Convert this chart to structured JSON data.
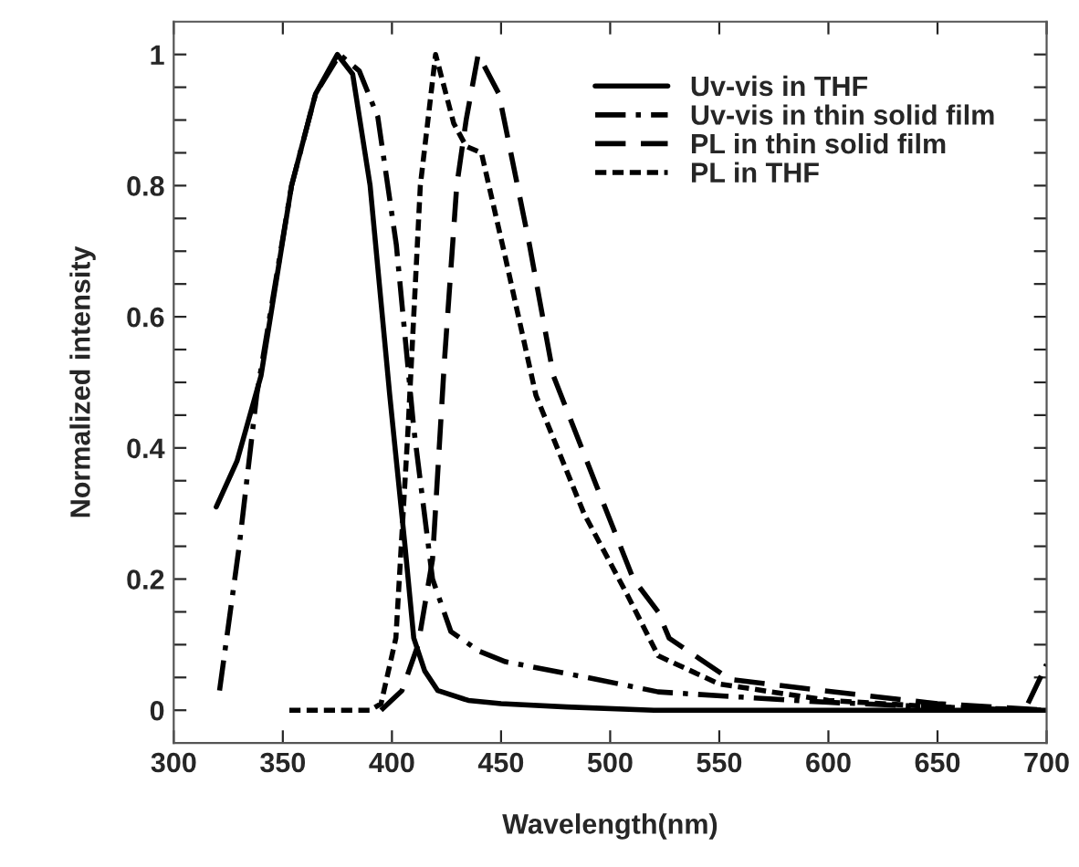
{
  "chart_data": {
    "type": "line",
    "xlabel": "Wavelength(nm)",
    "ylabel": "Normalized intensity",
    "xlim": [
      300,
      700
    ],
    "ylim": [
      -0.05,
      1.05
    ],
    "xticks": [
      300,
      350,
      400,
      450,
      500,
      550,
      600,
      650,
      700
    ],
    "yticks": [
      {
        "value": 0,
        "label": "0"
      },
      {
        "value": 0.05,
        "label": null
      },
      {
        "value": 0.1,
        "label": null
      },
      {
        "value": 0.15,
        "label": null
      },
      {
        "value": 0.2,
        "label": "0.2"
      },
      {
        "value": 0.25,
        "label": null
      },
      {
        "value": 0.3,
        "label": null
      },
      {
        "value": 0.35,
        "label": null
      },
      {
        "value": 0.4,
        "label": "0.4"
      },
      {
        "value": 0.45,
        "label": null
      },
      {
        "value": 0.5,
        "label": null
      },
      {
        "value": 0.55,
        "label": null
      },
      {
        "value": 0.6,
        "label": "0.6"
      },
      {
        "value": 0.65,
        "label": null
      },
      {
        "value": 0.7,
        "label": null
      },
      {
        "value": 0.75,
        "label": null
      },
      {
        "value": 0.8,
        "label": "0.8"
      },
      {
        "value": 0.85,
        "label": null
      },
      {
        "value": 0.9,
        "label": null
      },
      {
        "value": 0.95,
        "label": null
      },
      {
        "value": 1,
        "label": "1"
      }
    ],
    "grid": false,
    "legend": "top right",
    "marker": "none",
    "series": [
      {
        "name": "Uv-vis in THF",
        "color": "#000000",
        "line_style": "solid",
        "x": [
          319.5,
          329,
          340,
          354,
          365,
          375,
          382,
          390,
          399,
          406,
          410,
          415,
          421,
          435,
          450,
          480,
          520,
          600,
          700
        ],
        "values": [
          0.31,
          0.38,
          0.51,
          0.8,
          0.94,
          1.0,
          0.97,
          0.8,
          0.48,
          0.25,
          0.11,
          0.06,
          0.03,
          0.015,
          0.01,
          0.005,
          0.0,
          0.0,
          0.0
        ]
      },
      {
        "name": "Uv-vis in thin solid film",
        "color": "#000000",
        "line_style": "dashdot",
        "x": [
          321,
          330,
          338,
          354,
          365,
          376,
          385,
          393.5,
          402,
          410,
          418.6,
          427,
          440,
          452,
          494,
          522,
          560,
          600,
          650,
          690,
          700
        ],
        "values": [
          0.03,
          0.25,
          0.48,
          0.8,
          0.94,
          1.0,
          0.975,
          0.905,
          0.71,
          0.43,
          0.2,
          0.12,
          0.09,
          0.074,
          0.047,
          0.028,
          0.02,
          0.012,
          0.005,
          0.0,
          0.07
        ]
      },
      {
        "name": "PL in thin solid film",
        "color": "#000000",
        "line_style": "dashed",
        "x": [
          395,
          404.6,
          412,
          418.6,
          424,
          429.7,
          434,
          439.5,
          449,
          463,
          474,
          494,
          510.6,
          522,
          527,
          555,
          597,
          650,
          700
        ],
        "values": [
          0.0,
          0.03,
          0.1,
          0.23,
          0.53,
          0.8,
          0.9,
          1.0,
          0.94,
          0.71,
          0.51,
          0.34,
          0.2,
          0.15,
          0.11,
          0.047,
          0.03,
          0.01,
          0.0
        ]
      },
      {
        "name": "PL in THF",
        "color": "#000000",
        "line_style": "dotted",
        "x": [
          353,
          370,
          390,
          395,
          401.8,
          407.4,
          413,
          420,
          428.3,
          434,
          441,
          452,
          466,
          488,
          508,
          522,
          550,
          600,
          650,
          700
        ],
        "values": [
          0.0,
          0.0,
          0.0,
          0.01,
          0.11,
          0.43,
          0.8,
          1.0,
          0.895,
          0.86,
          0.85,
          0.69,
          0.48,
          0.3,
          0.175,
          0.083,
          0.04,
          0.015,
          0.005,
          0.0
        ]
      }
    ]
  }
}
